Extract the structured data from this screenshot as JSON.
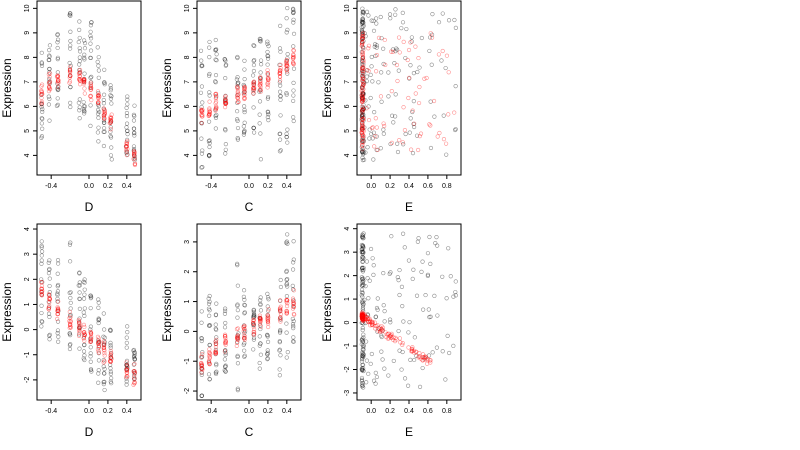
{
  "chart_data": [
    {
      "type": "scatter",
      "panel": "row1-col1",
      "xlabel": "D",
      "ylabel": "Expression",
      "xlim": [
        -0.55,
        0.55
      ],
      "ylim": [
        3.2,
        10.3
      ],
      "xticks": [
        -0.4,
        0.0,
        0.2,
        0.4
      ],
      "xtick_labels": [
        "-0.4",
        "0.0",
        "0.2",
        "0.4"
      ],
      "yticks": [
        4,
        5,
        6,
        7,
        8,
        9,
        10
      ],
      "ytick_labels": [
        "4",
        "5",
        "6",
        "7",
        "8",
        "9",
        "10"
      ],
      "groups_x": [
        -0.5,
        -0.42,
        -0.33,
        -0.2,
        -0.1,
        -0.05,
        0.02,
        0.1,
        0.16,
        0.23,
        0.4,
        0.48
      ],
      "series": [
        {
          "color": "#000000",
          "y_range_by_group": [
            [
              4.7,
              8.2
            ],
            [
              5.4,
              8.5
            ],
            [
              5.6,
              9.0
            ],
            [
              5.6,
              10.0
            ],
            [
              5.5,
              9.5
            ],
            [
              5.5,
              9.2
            ],
            [
              5.0,
              9.6
            ],
            [
              4.5,
              8.5
            ],
            [
              3.8,
              7.5
            ],
            [
              3.8,
              7.0
            ],
            [
              4.0,
              6.7
            ],
            [
              3.5,
              6.2
            ]
          ]
        },
        {
          "color": "#ff0000",
          "y_center_by_group": [
            6.6,
            7.0,
            7.1,
            7.3,
            7.2,
            7.0,
            6.7,
            6.3,
            5.7,
            5.4,
            4.4,
            3.9
          ]
        }
      ]
    },
    {
      "type": "scatter",
      "panel": "row1-col2",
      "xlabel": "C",
      "ylabel": "Expression",
      "xlim": [
        -0.55,
        0.55
      ],
      "ylim": [
        3.2,
        10.3
      ],
      "xticks": [
        -0.4,
        0.0,
        0.2,
        0.4
      ],
      "xtick_labels": [
        "-0.4",
        "0.0",
        "0.2",
        "0.4"
      ],
      "yticks": [
        4,
        5,
        6,
        7,
        8,
        9,
        10
      ],
      "ytick_labels": [
        "4",
        "5",
        "6",
        "7",
        "8",
        "9",
        "10"
      ],
      "groups_x": [
        -0.5,
        -0.42,
        -0.35,
        -0.25,
        -0.12,
        -0.05,
        0.05,
        0.12,
        0.2,
        0.33,
        0.4,
        0.47
      ],
      "series": [
        {
          "color": "#000000",
          "y_range_by_group": [
            [
              3.5,
              8.5
            ],
            [
              3.8,
              8.7
            ],
            [
              4.2,
              9.0
            ],
            [
              4.0,
              8.5
            ],
            [
              3.8,
              8.7
            ],
            [
              4.5,
              8.3
            ],
            [
              4.8,
              8.5
            ],
            [
              3.8,
              9.0
            ],
            [
              5.0,
              8.7
            ],
            [
              4.0,
              9.5
            ],
            [
              4.5,
              10.2
            ],
            [
              5.0,
              10.0
            ]
          ]
        },
        {
          "color": "#ff0000",
          "y_center_by_group": [
            5.6,
            5.8,
            6.1,
            6.2,
            6.4,
            6.6,
            6.8,
            6.9,
            7.1,
            7.4,
            7.7,
            7.9
          ]
        }
      ]
    },
    {
      "type": "scatter",
      "panel": "row1-col3",
      "xlabel": "E",
      "ylabel": "Expression",
      "xlim": [
        -0.15,
        0.95
      ],
      "ylim": [
        3.2,
        10.3
      ],
      "xticks": [
        0.0,
        0.2,
        0.4,
        0.6,
        0.8
      ],
      "xtick_labels": [
        "0.0",
        "0.2",
        "0.4",
        "0.6",
        "0.8"
      ],
      "yticks": [
        4,
        5,
        6,
        7,
        8,
        9,
        10
      ],
      "ytick_labels": [
        "4",
        "5",
        "6",
        "7",
        "8",
        "9",
        "10"
      ],
      "x_range": [
        -0.1,
        0.9
      ],
      "series": [
        {
          "color": "#000000",
          "y_range": [
            3.8,
            10.0
          ]
        },
        {
          "color": "#ff0000",
          "y_range": [
            4.2,
            9.0
          ]
        }
      ]
    },
    {
      "type": "scatter",
      "panel": "row2-col1",
      "xlabel": "D",
      "ylabel": "Expression",
      "xlim": [
        -0.55,
        0.55
      ],
      "ylim": [
        -2.8,
        4.2
      ],
      "xticks": [
        -0.4,
        0.0,
        0.2,
        0.4
      ],
      "xtick_labels": [
        "-0.4",
        "0.0",
        "0.2",
        "0.4"
      ],
      "yticks": [
        -2,
        -1,
        0,
        1,
        2,
        3,
        4
      ],
      "ytick_labels": [
        "-2",
        "-1",
        "0",
        "1",
        "2",
        "3",
        "4"
      ],
      "groups_x": [
        -0.5,
        -0.42,
        -0.33,
        -0.2,
        -0.1,
        -0.05,
        0.02,
        0.1,
        0.16,
        0.23,
        0.4,
        0.48
      ],
      "series": [
        {
          "color": "#000000",
          "y_range_by_group": [
            [
              0.0,
              3.6
            ],
            [
              -0.5,
              3.0
            ],
            [
              -0.5,
              2.8
            ],
            [
              -1.0,
              3.8
            ],
            [
              -1.3,
              2.5
            ],
            [
              -1.5,
              2.0
            ],
            [
              -2.0,
              1.5
            ],
            [
              -2.3,
              1.2
            ],
            [
              -2.5,
              0.8
            ],
            [
              -2.4,
              0.0
            ],
            [
              -2.2,
              0.3
            ],
            [
              -2.0,
              -0.8
            ]
          ]
        },
        {
          "color": "#ff0000",
          "y_center_by_group": [
            1.6,
            1.1,
            0.7,
            0.3,
            0.1,
            -0.1,
            -0.3,
            -0.6,
            -0.9,
            -1.2,
            -1.6,
            -1.8
          ]
        }
      ]
    },
    {
      "type": "scatter",
      "panel": "row2-col2",
      "xlabel": "C",
      "ylabel": "Expression",
      "xlim": [
        -0.55,
        0.55
      ],
      "ylim": [
        -2.3,
        3.6
      ],
      "xticks": [
        -0.4,
        0.0,
        0.2,
        0.4
      ],
      "xtick_labels": [
        "-0.4",
        "0.0",
        "0.2",
        "0.4"
      ],
      "yticks": [
        -2,
        -1,
        0,
        1,
        2,
        3
      ],
      "ytick_labels": [
        "-2",
        "-1",
        "0",
        "1",
        "2",
        "3"
      ],
      "groups_x": [
        -0.5,
        -0.42,
        -0.35,
        -0.25,
        -0.12,
        -0.05,
        0.05,
        0.12,
        0.2,
        0.33,
        0.4,
        0.47
      ],
      "series": [
        {
          "color": "#000000",
          "y_range_by_group": [
            [
              -2.2,
              1.5
            ],
            [
              -1.8,
              1.2
            ],
            [
              -1.5,
              1.0
            ],
            [
              -1.5,
              0.8
            ],
            [
              -2.0,
              2.5
            ],
            [
              -1.0,
              1.5
            ],
            [
              -0.8,
              1.0
            ],
            [
              -1.5,
              2.0
            ],
            [
              -1.0,
              1.5
            ],
            [
              -1.5,
              2.5
            ],
            [
              -1.0,
              3.3
            ],
            [
              -0.5,
              3.4
            ]
          ]
        },
        {
          "color": "#ff0000",
          "y_center_by_group": [
            -1.0,
            -0.8,
            -0.6,
            -0.4,
            -0.2,
            0.0,
            0.1,
            0.3,
            0.4,
            0.6,
            0.8,
            0.9
          ]
        }
      ]
    },
    {
      "type": "scatter",
      "panel": "row2-col3",
      "xlabel": "E",
      "ylabel": "Expression",
      "xlim": [
        -0.15,
        0.95
      ],
      "ylim": [
        -3.3,
        4.2
      ],
      "xticks": [
        0.0,
        0.2,
        0.4,
        0.6,
        0.8
      ],
      "xtick_labels": [
        "0.0",
        "0.2",
        "0.4",
        "0.6",
        "0.8"
      ],
      "yticks": [
        -3,
        -2,
        -1,
        0,
        1,
        2,
        3,
        4
      ],
      "ytick_labels": [
        "-3",
        "-2",
        "-1",
        "0",
        "1",
        "2",
        "3",
        "4"
      ],
      "x_range": [
        -0.1,
        0.9
      ],
      "series": [
        {
          "color": "#000000",
          "y_range": [
            -2.8,
            3.8
          ]
        },
        {
          "color": "#ff0000",
          "fit_line": {
            "intercept": 0.0,
            "slope": -2.7
          }
        }
      ]
    }
  ]
}
